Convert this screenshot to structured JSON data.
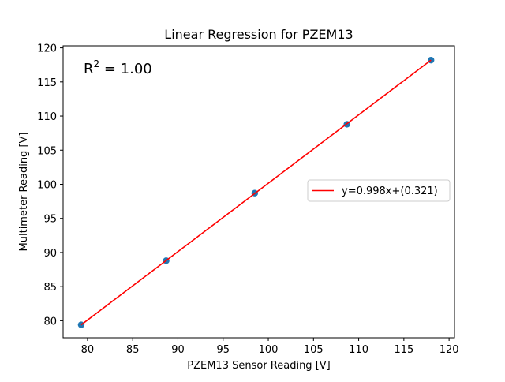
{
  "chart_data": {
    "type": "scatter",
    "title": "Linear Regression for PZEM13",
    "xlabel": "PZEM13 Sensor Reading [V]",
    "ylabel": "Multimeter Reading [V]",
    "xlim": [
      77.3,
      120.6
    ],
    "ylim": [
      77.5,
      120.3
    ],
    "x_ticks": [
      80,
      85,
      90,
      95,
      100,
      105,
      110,
      115,
      120
    ],
    "y_ticks": [
      80,
      85,
      90,
      95,
      100,
      105,
      110,
      115,
      120
    ],
    "grid": false,
    "legend_position": "center-right",
    "series": [
      {
        "kind": "points",
        "color": "#1f77b4",
        "x": [
          79.3,
          88.7,
          98.5,
          108.7,
          118.0
        ],
        "y": [
          79.4,
          88.8,
          98.7,
          108.8,
          118.2
        ]
      },
      {
        "kind": "fit-line",
        "name": "y=0.998x+(0.321)",
        "color": "#ff0000",
        "x": [
          79.3,
          118.0
        ],
        "y": [
          79.4,
          118.2
        ]
      }
    ],
    "annotation": {
      "r2_label": "R",
      "r2_superscript": "2",
      "r2_value": " = 1.00"
    }
  }
}
